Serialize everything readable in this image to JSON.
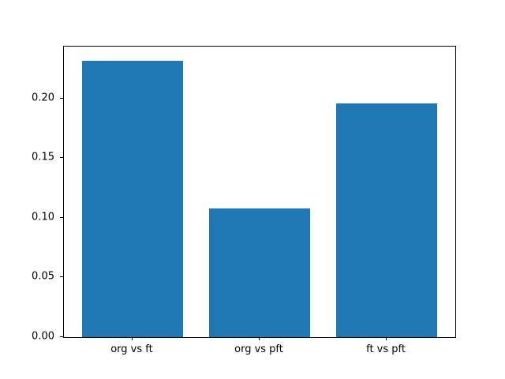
{
  "figure": {
    "background": "#ffffff",
    "spine_color": "#000000",
    "tick_color": "#000000"
  },
  "chart_data": {
    "type": "bar",
    "title": "",
    "xlabel": "",
    "ylabel": "",
    "categories": [
      "org vs ft",
      "org vs pft",
      "ft vs pft"
    ],
    "values": [
      0.232,
      0.108,
      0.196
    ],
    "bar_color": "#1f77b4",
    "bar_width_fraction": 0.8,
    "xlim": [
      -0.54,
      2.54
    ],
    "ylim": [
      0,
      0.2436
    ],
    "yticks": {
      "values": [
        0,
        0.05,
        0.1,
        0.15,
        0.2
      ],
      "labels": [
        "0.00",
        "0.05",
        "0.10",
        "0.15",
        "0.20"
      ]
    },
    "grid": false,
    "legend": null
  }
}
